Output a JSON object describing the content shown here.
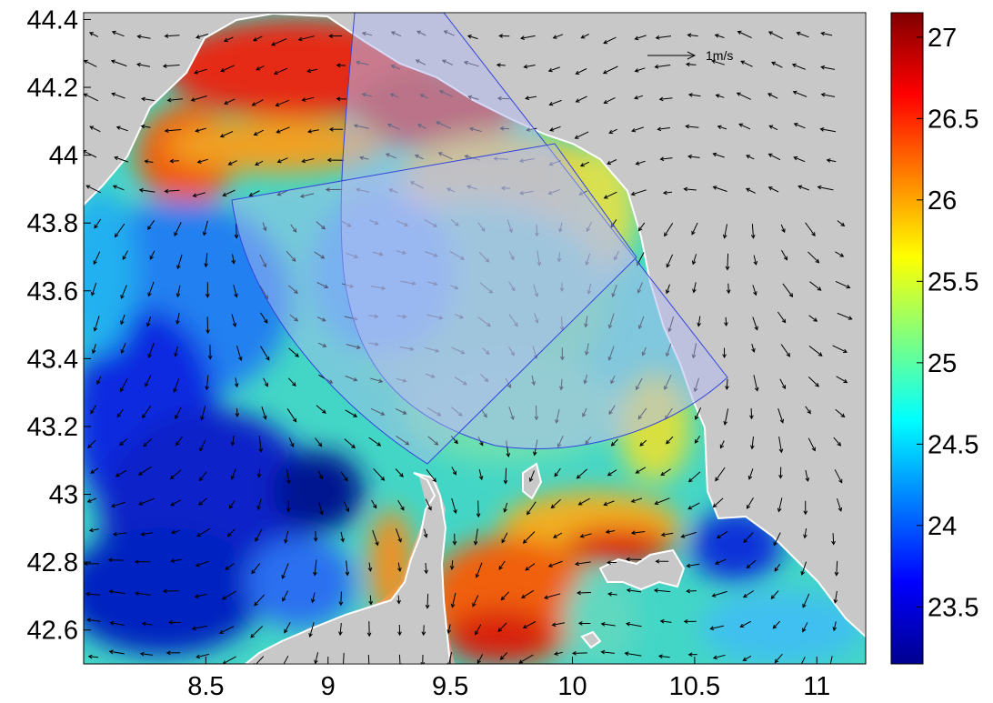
{
  "map": {
    "type": "heatmap",
    "x_ticks": [
      "8.5",
      "9",
      "9.5",
      "10",
      "10.5",
      "11"
    ],
    "x_tick_values": [
      8.5,
      9,
      9.5,
      10,
      10.5,
      11
    ],
    "y_ticks": [
      "44.4",
      "44.2",
      "44",
      "43.8",
      "43.6",
      "43.4",
      "43.2",
      "43",
      "42.8",
      "42.6"
    ],
    "y_tick_values": [
      44.4,
      44.2,
      44.0,
      43.8,
      43.6,
      43.4,
      43.2,
      43.0,
      42.8,
      42.6
    ],
    "xlim": [
      8.0,
      11.2
    ],
    "ylim": [
      42.5,
      44.42
    ],
    "scale_arrow_label": "1m/s",
    "land_color": "#c8c8c8",
    "radar_fan_color": "#b4bcf0",
    "radar_outline_color": "#3344dd"
  },
  "colorbar": {
    "ticks": [
      "27",
      "26.5",
      "26",
      "25.5",
      "25",
      "24.5",
      "24",
      "23.5"
    ],
    "tick_values": [
      27,
      26.5,
      26,
      25.5,
      25,
      24.5,
      24,
      23.5
    ],
    "range": [
      23.15,
      27.15
    ],
    "colormap": "jet"
  }
}
